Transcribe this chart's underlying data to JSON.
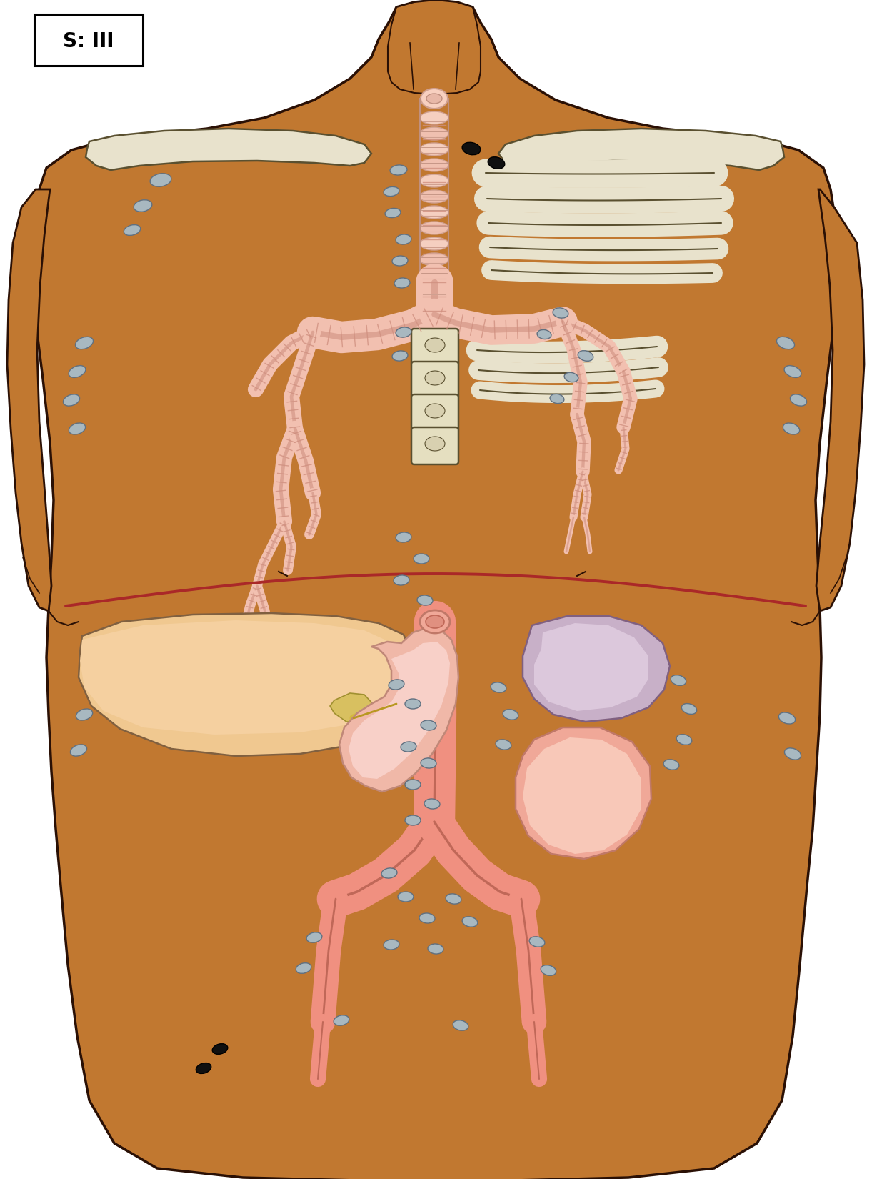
{
  "background": "#ffffff",
  "skin_color": "#c17830",
  "skin_outline": "#2a1005",
  "bone_color": "#e8e2cc",
  "bone_outline": "#5a5030",
  "trachea_fill": "#f2c8b8",
  "trachea_ring": "#e0a898",
  "bronch_fill": "#f2c0b0",
  "bronch_ring": "#d09080",
  "vertebra_fill": "#e5dfc0",
  "vertebra_outline": "#5a5030",
  "liver_fill": "#f0c890",
  "liver_dark": "#deb070",
  "liver_outline": "#806040",
  "gallbladder_fill": "#d8c060",
  "stomach_outer": "#f0b8a8",
  "stomach_inner": "#f8d0c8",
  "stomach_outline": "#c08878",
  "spleen_outer": "#c8b0c8",
  "spleen_inner": "#dcc8dc",
  "spleen_outline": "#806080",
  "kidney_outer": "#f0a898",
  "kidney_inner": "#f8c8b8",
  "kidney_outline": "#c07868",
  "aorta_fill": "#f09080",
  "aorta_outline": "#c06858",
  "diaphragm_color": "#aa2828",
  "lymph_gray_fill": "#a8b8c0",
  "lymph_gray_edge": "#607080",
  "lymph_black_fill": "#101010",
  "fig_width": 12.21,
  "fig_height": 16.5
}
